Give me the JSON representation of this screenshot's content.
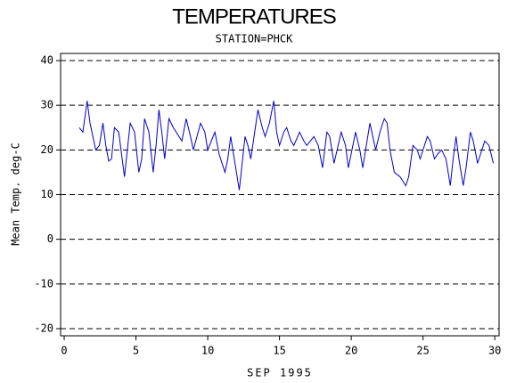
{
  "chart_data": {
    "type": "line",
    "title": "TEMPERATURES",
    "subtitle": "STATION=PHCK",
    "xlabel": "SEP 1995",
    "ylabel": "Mean Temp. deg-C",
    "xlim": [
      -0.25,
      30.3
    ],
    "ylim": [
      -21.6,
      41.6
    ],
    "xticks": [
      0,
      5,
      10,
      15,
      20,
      25,
      30
    ],
    "yticks": [
      -20,
      -10,
      0,
      10,
      20,
      30,
      40
    ],
    "grid": true,
    "series": [
      {
        "color": "#0000cc",
        "x": [
          1.05,
          1.3,
          1.6,
          1.8,
          2.2,
          2.45,
          2.7,
          2.9,
          3.1,
          3.3,
          3.5,
          3.8,
          4.2,
          4.4,
          4.6,
          4.9,
          5.2,
          5.4,
          5.6,
          5.9,
          6.2,
          6.4,
          6.6,
          6.8,
          7.0,
          7.3,
          7.6,
          8.0,
          8.2,
          8.5,
          8.8,
          9.0,
          9.5,
          9.8,
          10.0,
          10.5,
          10.8,
          11.2,
          11.4,
          11.6,
          11.9,
          12.2,
          12.4,
          12.6,
          12.8,
          13.0,
          13.5,
          13.8,
          14.0,
          14.3,
          14.6,
          14.8,
          15.0,
          15.3,
          15.5,
          15.8,
          16.0,
          16.4,
          16.7,
          16.9,
          17.4,
          17.7,
          18.0,
          18.3,
          18.5,
          18.8,
          19.3,
          19.6,
          19.8,
          20.3,
          20.6,
          20.8,
          21.3,
          21.5,
          21.7,
          22.0,
          22.3,
          22.5,
          22.7,
          23.0,
          23.4,
          23.8,
          24.0,
          24.3,
          24.6,
          24.8,
          25.3,
          25.5,
          25.8,
          26.0,
          26.3,
          26.6,
          26.9,
          27.1,
          27.3,
          27.5,
          27.8,
          28.0,
          28.3,
          28.5,
          28.8,
          29.0,
          29.3,
          29.6,
          29.9
        ],
        "values": [
          25,
          24,
          31,
          26,
          20,
          21,
          26,
          21,
          17.5,
          18,
          25,
          24,
          14,
          20,
          26,
          24,
          15,
          18,
          27,
          24,
          15,
          21,
          29,
          24,
          18,
          27,
          25,
          23,
          22,
          27,
          23,
          20,
          26,
          24,
          20,
          24,
          19,
          15,
          18,
          23,
          17,
          11,
          17,
          23,
          21,
          18,
          29,
          25,
          23,
          26,
          31,
          24,
          21,
          24,
          25,
          22,
          21,
          24,
          22,
          21,
          23,
          21,
          16,
          24,
          23,
          17,
          24,
          21,
          16,
          24,
          20,
          16,
          26,
          23,
          20,
          24,
          27,
          26,
          20,
          15,
          14,
          12,
          14,
          21,
          20,
          18,
          23,
          22,
          18,
          19,
          20,
          18,
          12,
          18,
          23,
          18,
          12,
          16,
          24,
          22,
          17,
          19,
          22,
          21,
          17
        ]
      }
    ]
  }
}
